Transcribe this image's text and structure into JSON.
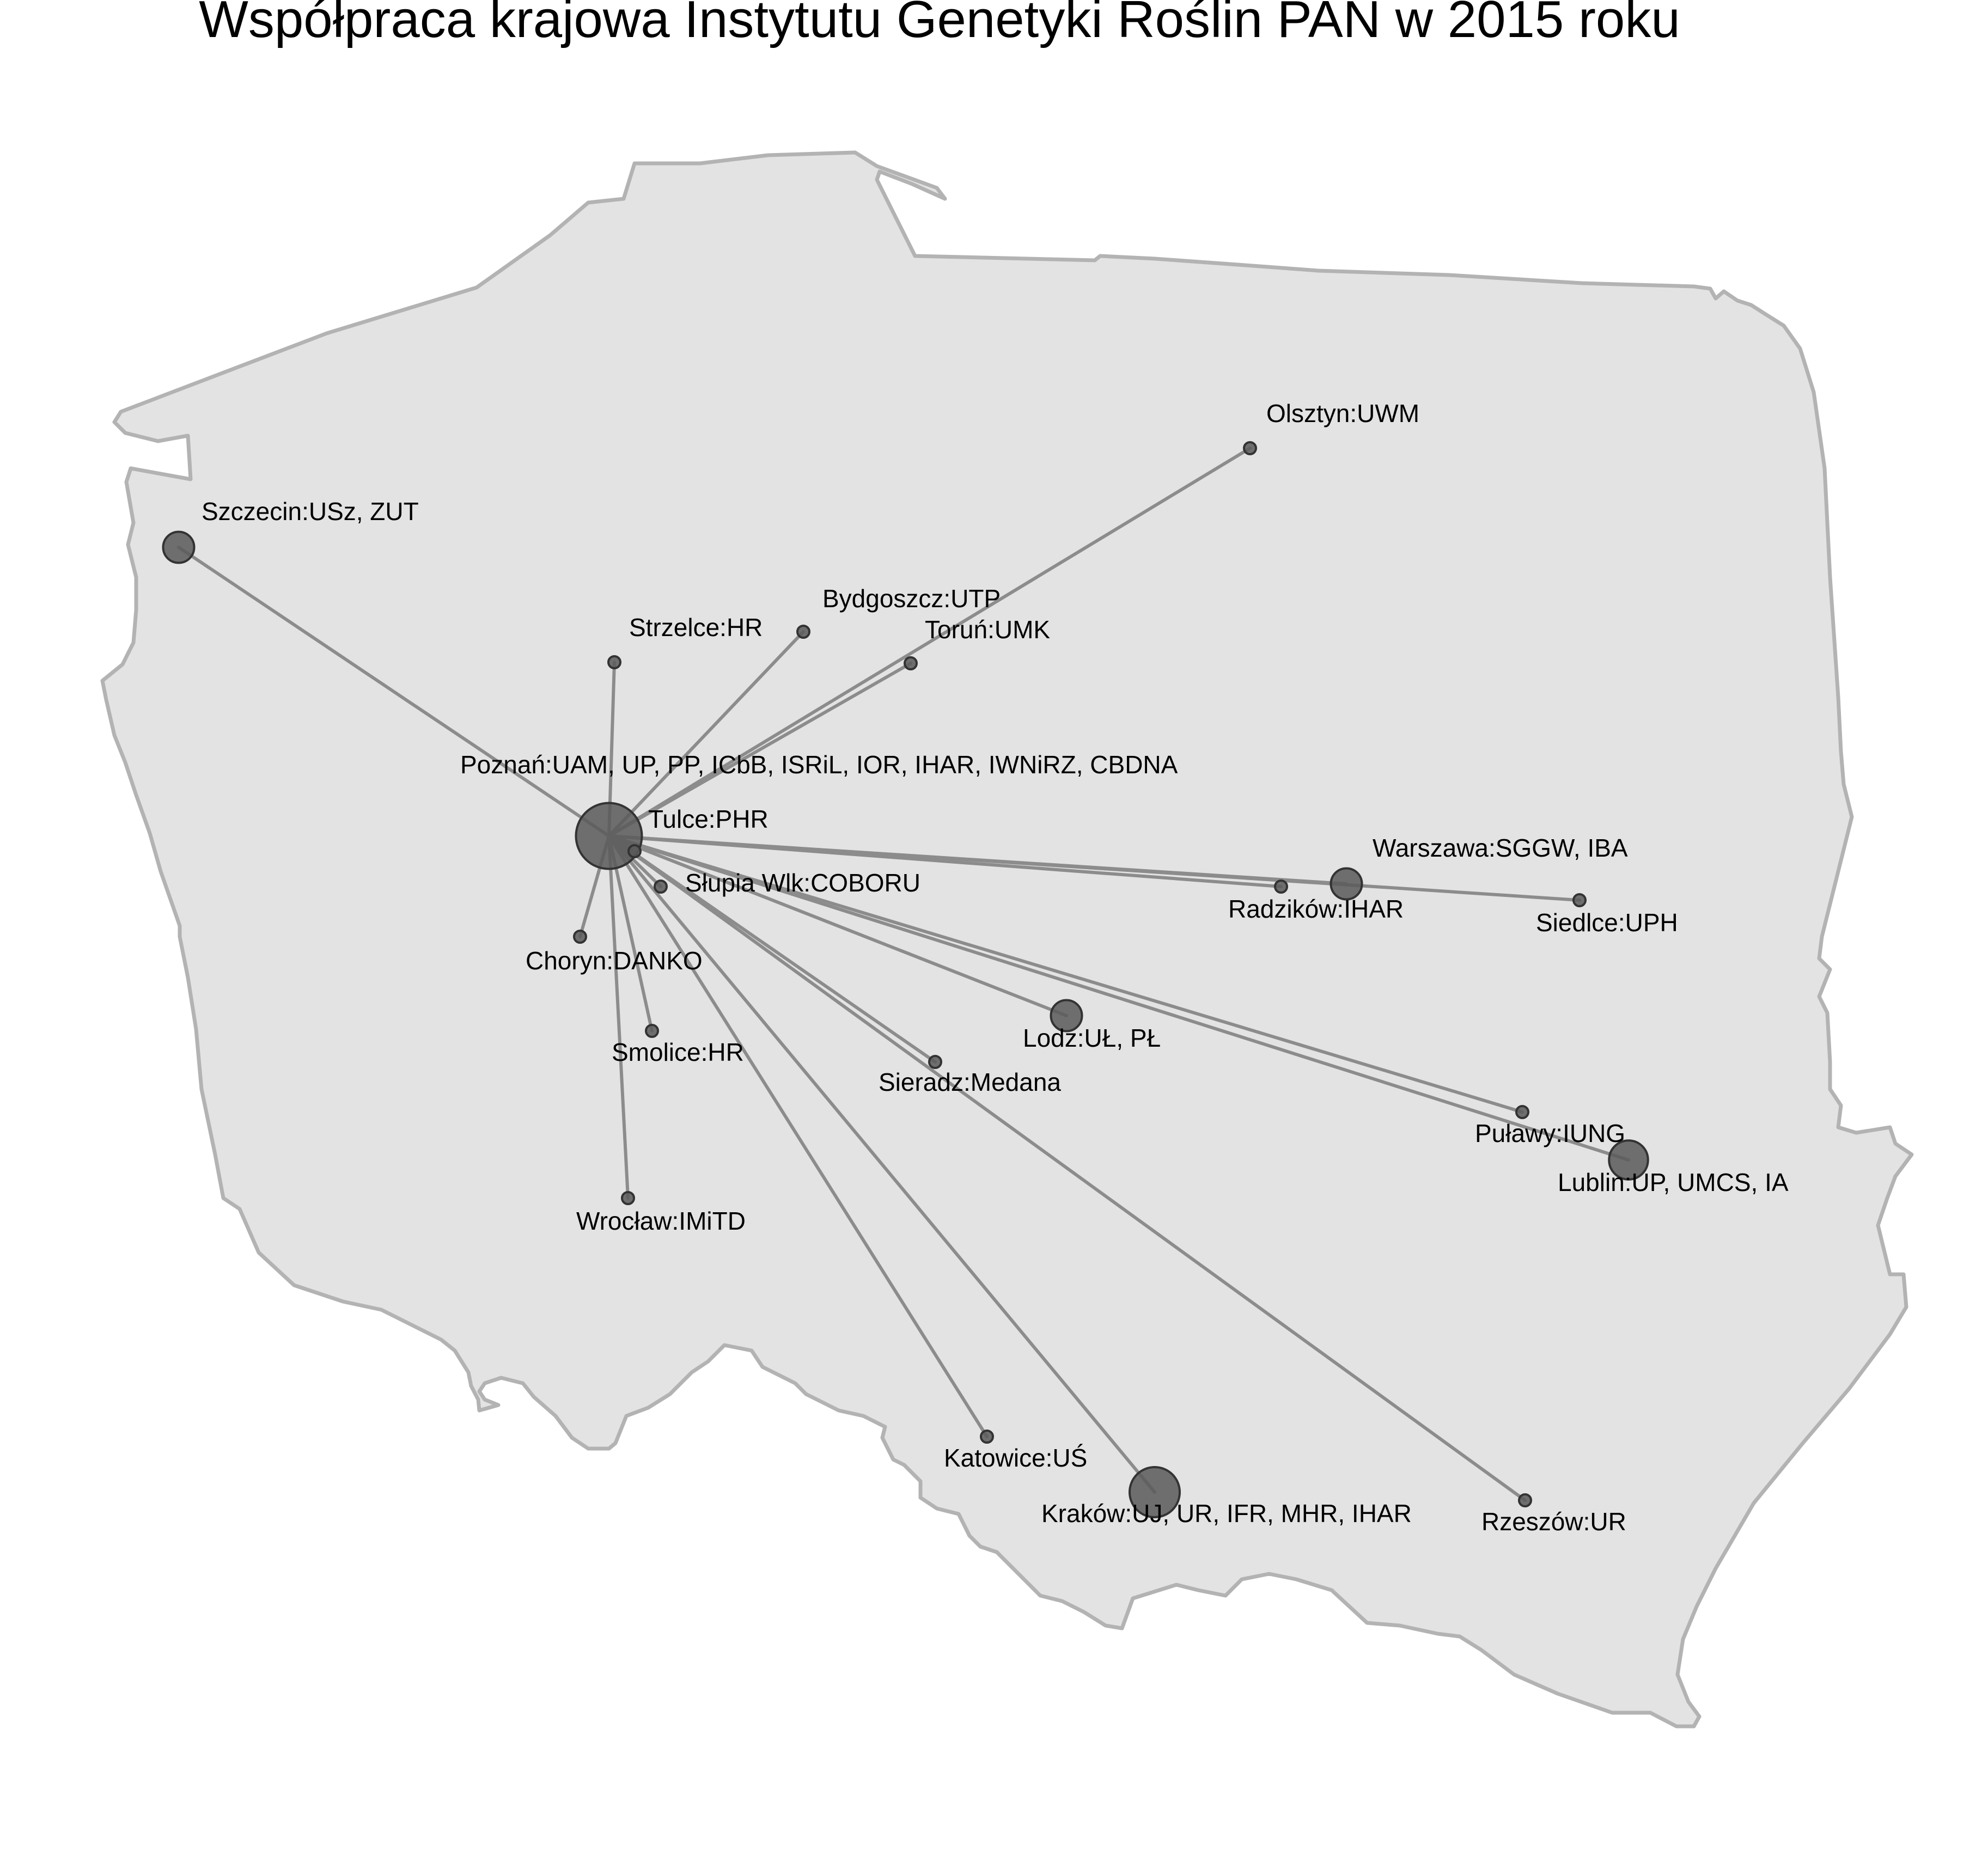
{
  "title": "Współpraca krajowa Instytutu Genetyki Roślin PAN w 2015 roku",
  "colors": {
    "country_fill": "#e3e3e3",
    "country_stroke": "#b3b3b3",
    "link": "#8c8c8c",
    "node_fill": "#595959",
    "node_stroke": "#333333"
  },
  "hub": "Poznań",
  "locations": [
    {
      "id": "Poznań",
      "label": "Poznań:UAM, UP, PP, ICbB, ISRiL, IOR, IHAR, IWNiRZ, CBDNA",
      "count": 9
    },
    {
      "id": "Tulce",
      "label": "Tulce:PHR",
      "count": 1
    },
    {
      "id": "Szczecin",
      "label": "Szczecin:USz, ZUT",
      "count": 2
    },
    {
      "id": "Olsztyn",
      "label": "Olsztyn:UWM",
      "count": 1
    },
    {
      "id": "Bydgoszcz",
      "label": "Bydgoszcz:UTP",
      "count": 1
    },
    {
      "id": "Toruń",
      "label": "Toruń:UMK",
      "count": 1
    },
    {
      "id": "Strzelce",
      "label": "Strzelce:HR",
      "count": 1
    },
    {
      "id": "Słupia Wlk",
      "label": "Słupia Wlk:COBORU",
      "count": 1
    },
    {
      "id": "Choryn",
      "label": "Choryn:DANKO",
      "count": 1
    },
    {
      "id": "Smolice",
      "label": "Smolice:HR",
      "count": 1
    },
    {
      "id": "Wrocław",
      "label": "Wrocław:IMiTD",
      "count": 1
    },
    {
      "id": "Warszawa",
      "label": "Warszawa:SGGW, IBA",
      "count": 2
    },
    {
      "id": "Radzików",
      "label": "Radzików:IHAR",
      "count": 1
    },
    {
      "id": "Siedlce",
      "label": "Siedlce:UPH",
      "count": 1
    },
    {
      "id": "Lodz",
      "label": "Lodz:UŁ, PŁ",
      "count": 2
    },
    {
      "id": "Sieradz",
      "label": "Sieradz:Medana",
      "count": 1
    },
    {
      "id": "Puławy",
      "label": "Puławy:IUNG",
      "count": 1
    },
    {
      "id": "Lublin",
      "label": "Lublin:UP, UMCS, IA",
      "count": 3
    },
    {
      "id": "Katowice",
      "label": "Katowice:UŚ",
      "count": 1
    },
    {
      "id": "Kraków",
      "label": "Kraków:UJ, UR, IFR, MHR, IHAR",
      "count": 5
    },
    {
      "id": "Rzeszów",
      "label": "Rzeszów:UR",
      "count": 1
    }
  ]
}
